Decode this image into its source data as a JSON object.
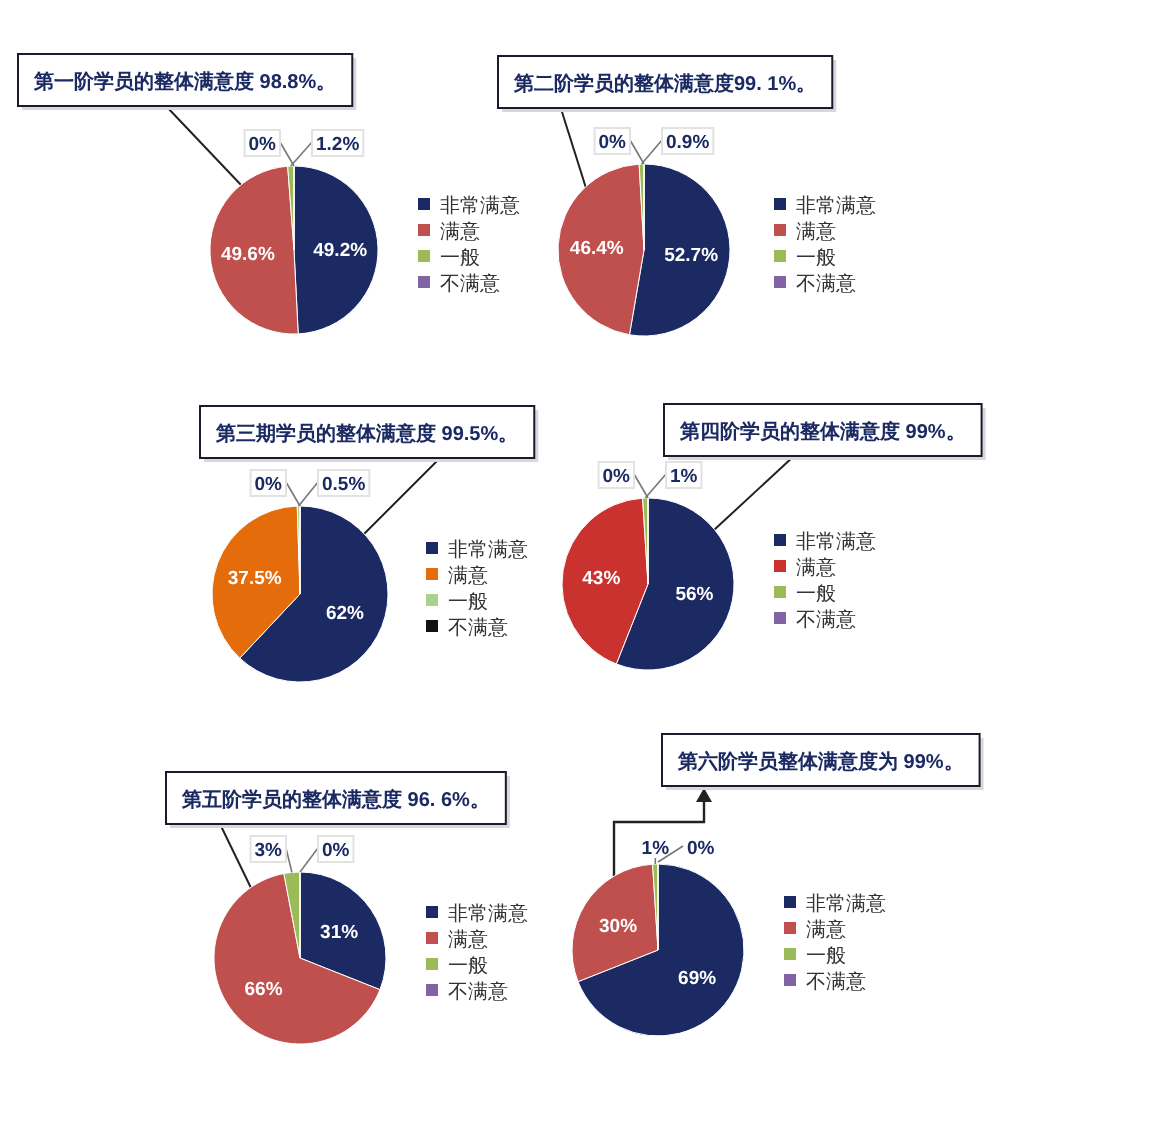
{
  "chart_data": [
    {
      "type": "pie",
      "title": "第一阶学员的整体满意度 98.8%。",
      "categories": [
        "非常满意",
        "满意",
        "一般",
        "不满意"
      ],
      "values": [
        49.2,
        49.6,
        1.2,
        0
      ],
      "colors": [
        "#1b2a63",
        "#c0504d",
        "#9bbb59",
        "#8064a2"
      ],
      "value_labels": [
        "49.2%",
        "49.6%",
        "1.2%",
        "0%"
      ],
      "legend": "right"
    },
    {
      "type": "pie",
      "title": "第二阶学员的整体满意度99. 1%。",
      "categories": [
        "非常满意",
        "满意",
        "一般",
        "不满意"
      ],
      "values": [
        52.7,
        46.4,
        0.9,
        0
      ],
      "colors": [
        "#1b2a63",
        "#c0504d",
        "#9bbb59",
        "#8064a2"
      ],
      "value_labels": [
        "52.7%",
        "46.4%",
        "0.9%",
        "0%"
      ],
      "legend": "right"
    },
    {
      "type": "pie",
      "title": "第三期学员的整体满意度 99.5%。",
      "categories": [
        "非常满意",
        "满意",
        "一般",
        "不满意"
      ],
      "values": [
        62,
        37.5,
        0.5,
        0
      ],
      "colors": [
        "#1b2a63",
        "#e46c0a",
        "#a9d08e",
        "#111111"
      ],
      "value_labels": [
        "62%",
        "37.5%",
        "0.5%",
        "0%"
      ],
      "legend": "right"
    },
    {
      "type": "pie",
      "title": "第四阶学员的整体满意度 99%。",
      "categories": [
        "非常满意",
        "满意",
        "一般",
        "不满意"
      ],
      "values": [
        56,
        43,
        1,
        0
      ],
      "colors": [
        "#1b2a63",
        "#c9322f",
        "#9bbb59",
        "#8064a2"
      ],
      "value_labels": [
        "56%",
        "43%",
        "1%",
        "0%"
      ],
      "legend": "right"
    },
    {
      "type": "pie",
      "title": "第五阶学员的整体满意度 96. 6%。",
      "categories": [
        "非常满意",
        "满意",
        "一般",
        "不满意"
      ],
      "values": [
        31,
        66,
        3,
        0
      ],
      "colors": [
        "#1b2a63",
        "#c0504d",
        "#9bbb59",
        "#8064a2"
      ],
      "value_labels": [
        "31%",
        "66%",
        "3%",
        "0%"
      ],
      "legend": "right"
    },
    {
      "type": "pie",
      "title": "第六阶学员整体满意度为 99%。",
      "categories": [
        "非常满意",
        "满意",
        "一般",
        "不满意"
      ],
      "values": [
        69,
        30,
        1,
        0
      ],
      "colors": [
        "#1b2a63",
        "#c0504d",
        "#9bbb59",
        "#8064a2"
      ],
      "value_labels": [
        "69%",
        "30%",
        "1%",
        "0%"
      ],
      "legend": "right"
    }
  ]
}
